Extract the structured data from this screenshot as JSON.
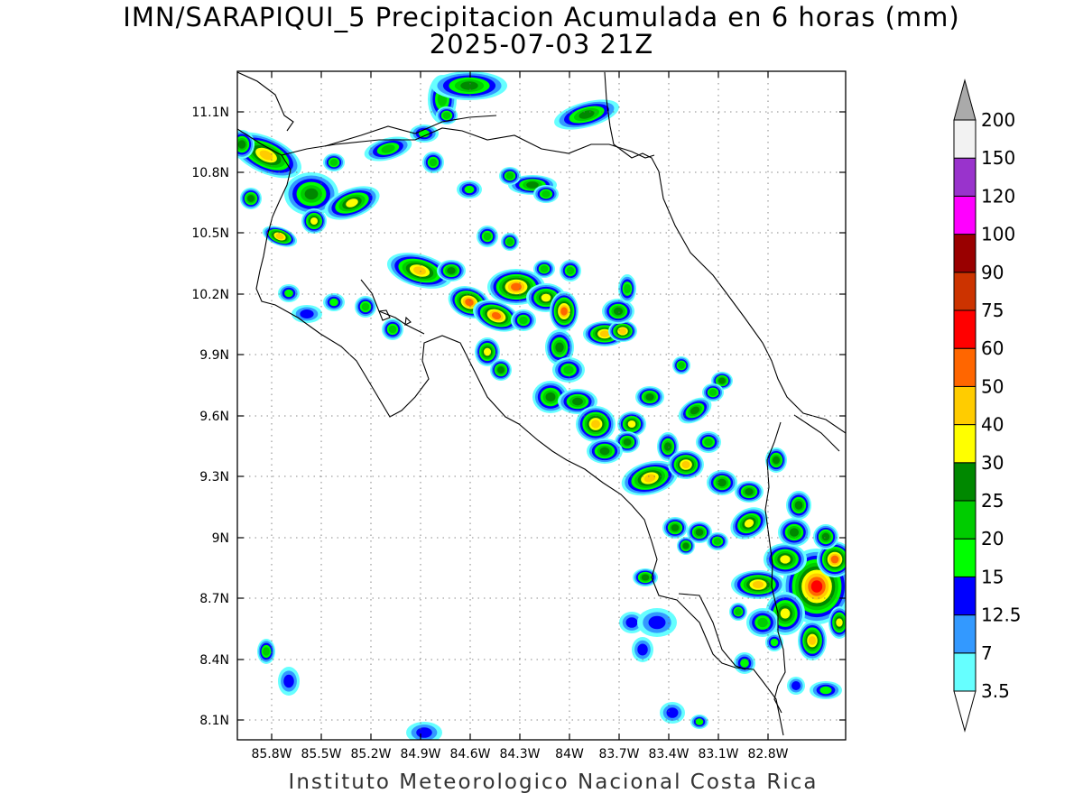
{
  "title": {
    "line1": "IMN/SARAPIQUI_5 Precipitacion Acumulada en 6 horas (mm)",
    "line2": "2025-07-03 21Z"
  },
  "footer": "Instituto Meteorologico Nacional Costa Rica",
  "axes": {
    "lat_labels": [
      "11.1N",
      "10.8N",
      "10.5N",
      "10.2N",
      "9.9N",
      "9.6N",
      "9.3N",
      "9N",
      "8.7N",
      "8.4N",
      "8.1N"
    ],
    "lon_labels": [
      "85.8W",
      "85.5W",
      "85.2W",
      "84.9W",
      "84.6W",
      "84.3W",
      "84W",
      "83.7W",
      "83.4W",
      "83.1W",
      "82.8W"
    ],
    "grid": true,
    "grid_style": "dotted"
  },
  "colorbar": {
    "levels": [
      "3.5",
      "7",
      "12.5",
      "15",
      "20",
      "25",
      "30",
      "40",
      "50",
      "60",
      "75",
      "90",
      "100",
      "120",
      "150",
      "200"
    ],
    "colors": [
      "#66ffff",
      "#3399ff",
      "#0000ff",
      "#00ff00",
      "#00cc00",
      "#008800",
      "#ffff00",
      "#ffcc00",
      "#ff6600",
      "#ff0000",
      "#cc3300",
      "#990000",
      "#ff00ff",
      "#9933cc",
      "#f2f2f2",
      "#aaaaaa"
    ]
  },
  "precip_colors": {
    "c35": "#66ffff",
    "c7": "#3399ff",
    "c125": "#0000ff",
    "c15": "#00ff00",
    "c20": "#00cc00",
    "c25": "#008800",
    "c30": "#ffff00",
    "c40": "#ffcc00",
    "c50": "#ff6600",
    "c60": "#ff0000",
    "c75": "#cc3300"
  }
}
